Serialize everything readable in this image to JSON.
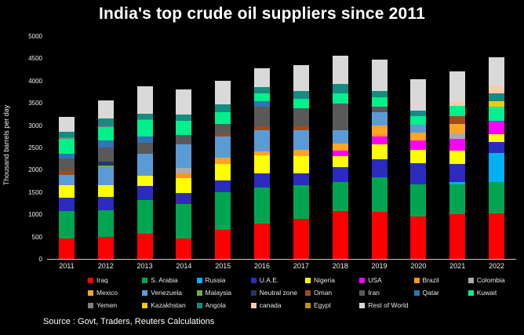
{
  "title": "India's top crude oil suppliers since 2011",
  "source_note": "Source : Govt, Traders, Reuters Calculations",
  "background_color": "#000000",
  "text_color": "#FFFFFF",
  "chart_data": {
    "type": "bar",
    "subtype": "stacked",
    "title": "India's top crude oil suppliers since 2011",
    "xlabel": "",
    "ylabel": "Thousand barrels per day",
    "ylim": [
      0,
      5000
    ],
    "yticks": [
      0,
      500,
      1000,
      1500,
      2000,
      2500,
      3000,
      3500,
      4000,
      4500,
      5000
    ],
    "grid": false,
    "legend_position": "bottom",
    "legend_columns": 8,
    "categories": [
      "2011",
      "2012",
      "2013",
      "2014",
      "2015",
      "2016",
      "2017",
      "2018",
      "2019",
      "2020",
      "2021",
      "2022"
    ],
    "series": [
      {
        "name": "Iraq",
        "color": "#FF0000",
        "values": [
          450,
          490,
          560,
          450,
          650,
          790,
          900,
          1070,
          1050,
          950,
          1000,
          1020
        ]
      },
      {
        "name": "S. Arabia",
        "color": "#00A551",
        "values": [
          620,
          600,
          760,
          790,
          850,
          820,
          760,
          650,
          790,
          720,
          670,
          705
        ]
      },
      {
        "name": "Russia",
        "color": "#00B0F0",
        "values": [
          0,
          0,
          0,
          0,
          0,
          0,
          0,
          0,
          0,
          0,
          50,
          650
        ]
      },
      {
        "name": "U.A.E.",
        "color": "#2B2BBF",
        "values": [
          310,
          300,
          315,
          230,
          265,
          315,
          265,
          345,
          405,
          475,
          405,
          250
        ]
      },
      {
        "name": "Nigeria",
        "color": "#FFFF00",
        "values": [
          280,
          265,
          230,
          335,
          360,
          395,
          385,
          250,
          320,
          300,
          300,
          180
        ]
      },
      {
        "name": "USA",
        "color": "#FF00FF",
        "values": [
          0,
          0,
          0,
          0,
          0,
          0,
          0,
          110,
          175,
          210,
          265,
          300
        ]
      },
      {
        "name": "Brazil",
        "color": "#F79420",
        "values": [
          0,
          0,
          0,
          105,
          0,
          0,
          0,
          0,
          60,
          0,
          0,
          0
        ]
      },
      {
        "name": "Colombia",
        "color": "#ABABAB",
        "values": [
          0,
          0,
          0,
          125,
          0,
          0,
          0,
          0,
          0,
          0,
          125,
          0
        ]
      },
      {
        "name": "Mexico",
        "color": "#FFA426",
        "values": [
          0,
          0,
          0,
          0,
          140,
          90,
          140,
          160,
          200,
          175,
          210,
          0
        ]
      },
      {
        "name": "Venezuela",
        "color": "#5B9BD5",
        "values": [
          230,
          385,
          490,
          530,
          490,
          475,
          440,
          300,
          300,
          175,
          0,
          0
        ]
      },
      {
        "name": "Malaysia",
        "color": "#70AD47",
        "values": [
          0,
          50,
          0,
          0,
          0,
          0,
          0,
          0,
          0,
          0,
          0,
          0
        ]
      },
      {
        "name": "Neutral zone",
        "color": "#203864",
        "values": [
          0,
          90,
          0,
          0,
          0,
          0,
          0,
          0,
          0,
          0,
          0,
          0
        ]
      },
      {
        "name": "Oman",
        "color": "#9E4B1E",
        "values": [
          90,
          0,
          0,
          0,
          70,
          90,
          90,
          0,
          0,
          0,
          175,
          0
        ]
      },
      {
        "name": "Iran",
        "color": "#595959",
        "values": [
          265,
          315,
          245,
          210,
          195,
          440,
          405,
          600,
          125,
          0,
          0,
          0
        ]
      },
      {
        "name": "Qatar",
        "color": "#2E75B6",
        "values": [
          105,
          160,
          140,
          0,
          0,
          125,
          0,
          0,
          0,
          0,
          0,
          0
        ]
      },
      {
        "name": "Kuwait",
        "color": "#00F08C",
        "values": [
          350,
          300,
          380,
          315,
          265,
          175,
          210,
          230,
          210,
          195,
          230,
          315
        ]
      },
      {
        "name": "Yemen",
        "color": "#7F7F7F",
        "values": [
          30,
          30,
          20,
          0,
          0,
          0,
          0,
          0,
          0,
          0,
          0,
          0
        ]
      },
      {
        "name": "Kazakhstan",
        "color": "#F2C811",
        "values": [
          0,
          0,
          0,
          0,
          0,
          0,
          0,
          0,
          0,
          0,
          0,
          125
        ]
      },
      {
        "name": "Angola",
        "color": "#158C80",
        "values": [
          125,
          160,
          125,
          140,
          175,
          140,
          175,
          210,
          140,
          125,
          0,
          175
        ]
      },
      {
        "name": "canada",
        "color": "#F9CBAD",
        "values": [
          0,
          0,
          0,
          0,
          0,
          0,
          0,
          0,
          0,
          0,
          105,
          175
        ]
      },
      {
        "name": "Egypt",
        "color": "#C09100",
        "values": [
          0,
          0,
          0,
          0,
          0,
          0,
          0,
          0,
          0,
          0,
          0,
          0
        ]
      },
      {
        "name": "Rest of World",
        "color": "#D9D9D9",
        "values": [
          325,
          405,
          605,
          570,
          530,
          425,
          580,
          640,
          705,
          705,
          665,
          635
        ]
      }
    ]
  }
}
